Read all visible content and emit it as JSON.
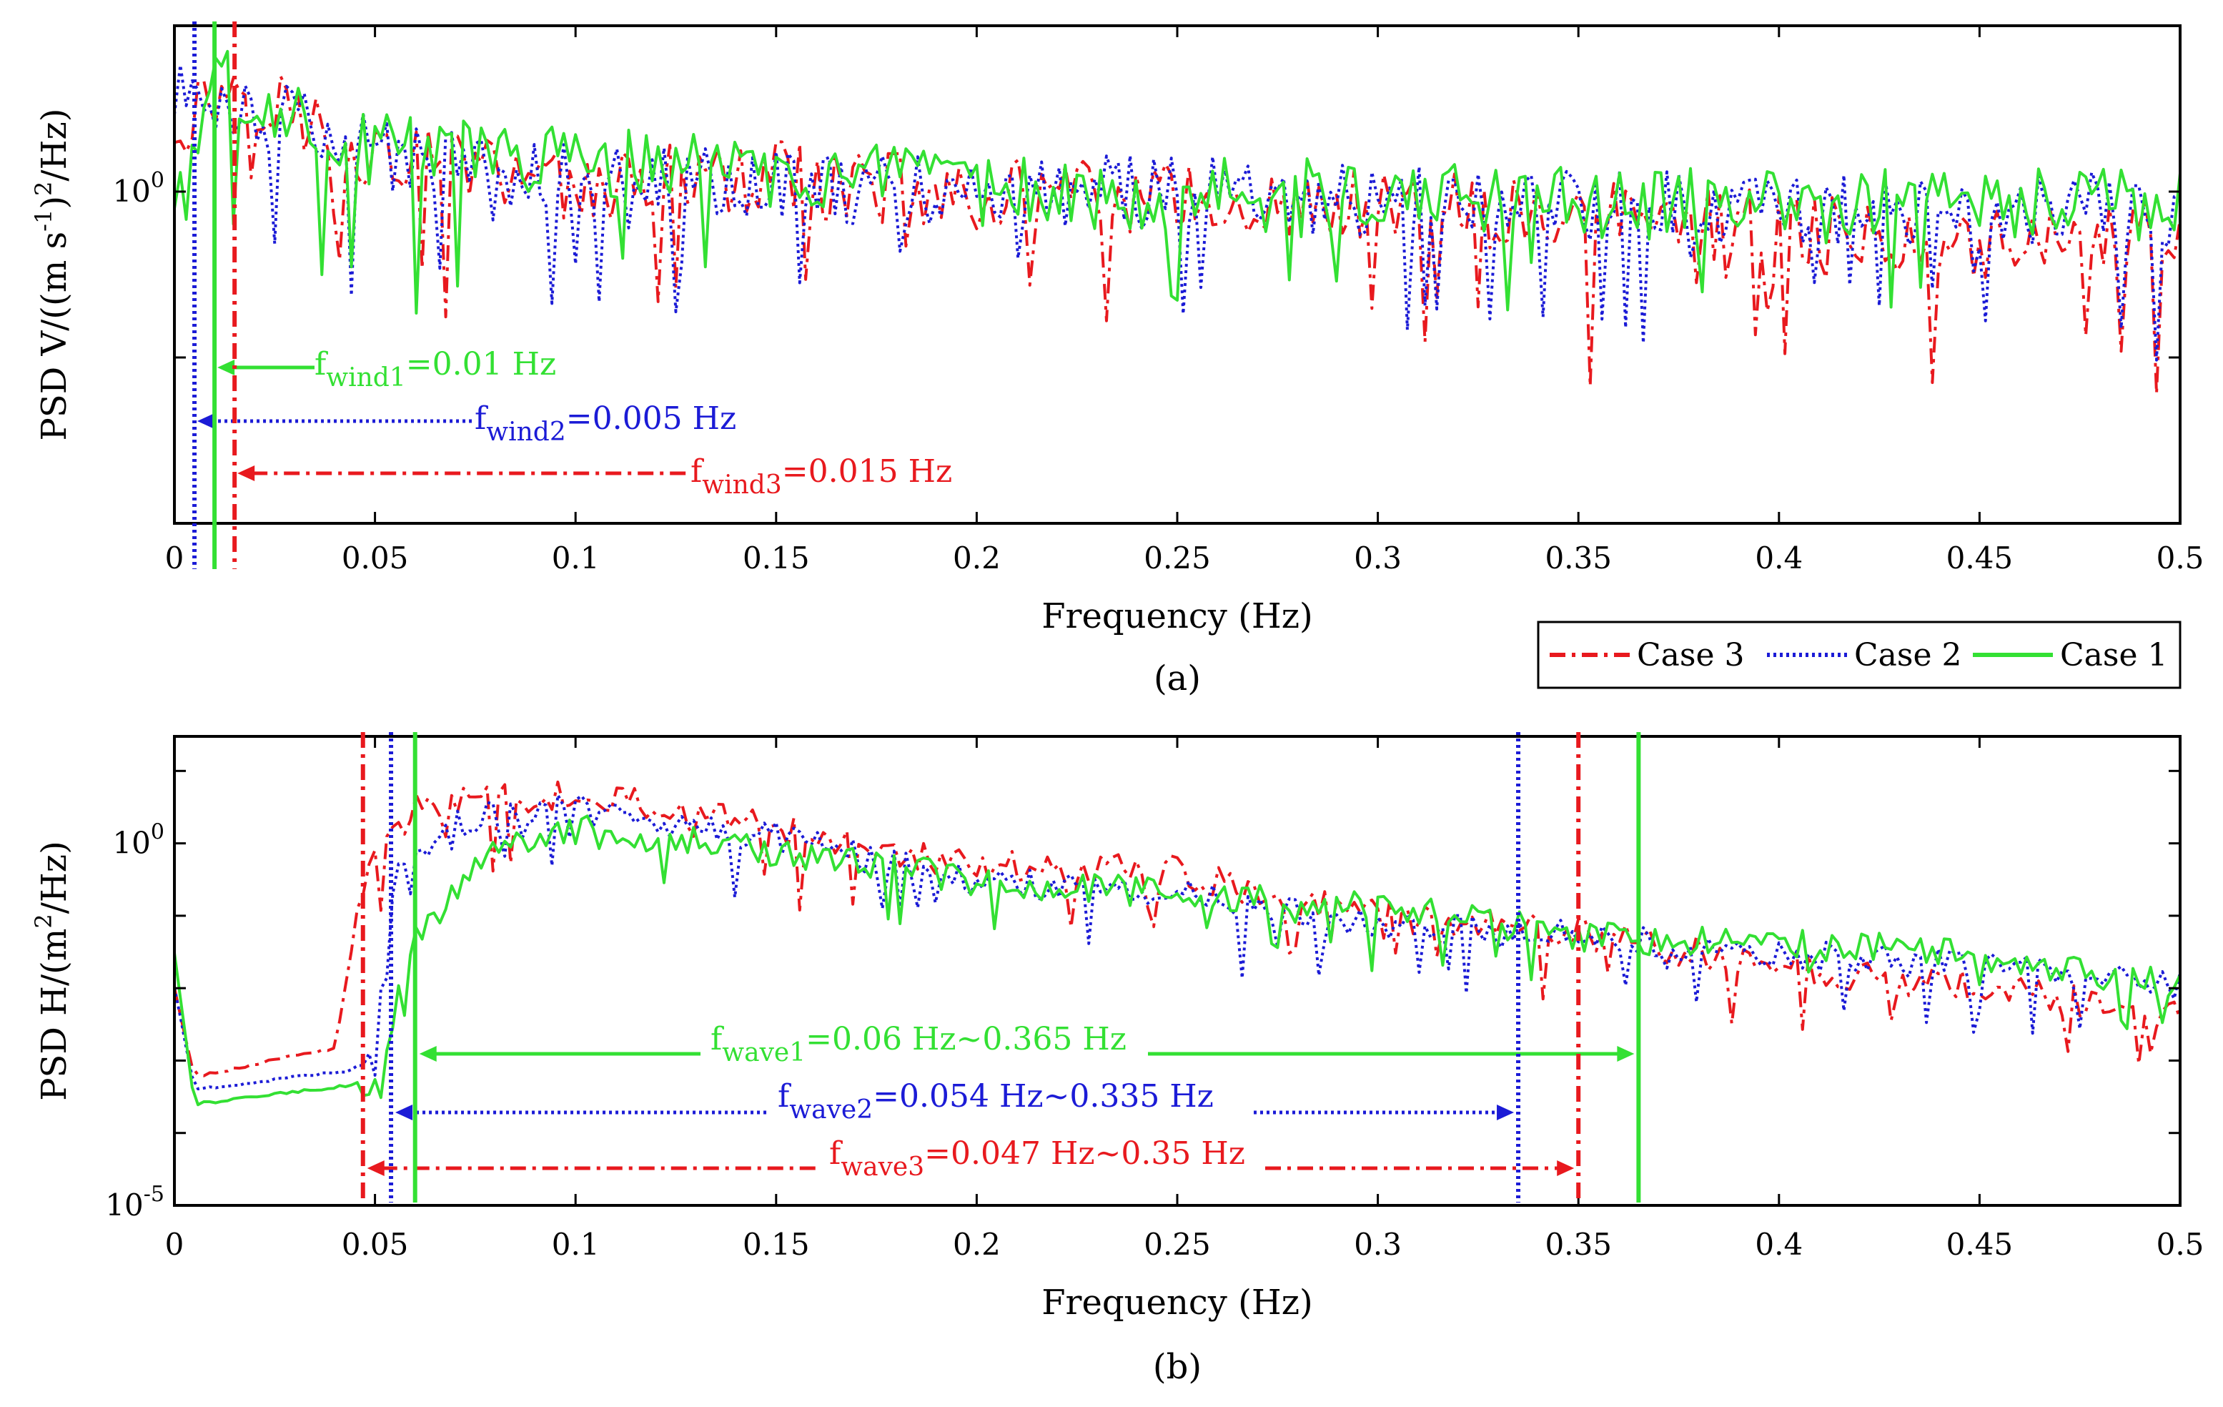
{
  "chart_data": [
    {
      "panel": "(a)",
      "type": "line",
      "xlabel": "Frequency (Hz)",
      "ylabel": "PSD V/((m s-1)2/Hz)",
      "ylabel_parts": [
        "PSD V/((m s",
        "-1",
        ")",
        "2",
        "/Hz)"
      ],
      "xlim": [
        0,
        0.5
      ],
      "xticks": [
        "0",
        "0.05",
        "0.1",
        "0.15",
        "0.2",
        "0.25",
        "0.3",
        "0.35",
        "0.4",
        "0.45",
        "0.5"
      ],
      "yscale": "log",
      "ylim": [
        0.01,
        10
      ],
      "ytick_label": {
        "base": "10",
        "exp": "0",
        "value": 1
      },
      "series": [
        {
          "name": "Case 3",
          "color": "#e8191e",
          "style": "dashdot",
          "x": [
            0,
            0.015,
            0.05,
            0.1,
            0.15,
            0.2,
            0.25,
            0.3,
            0.35,
            0.4,
            0.45,
            0.5
          ],
          "y": [
            2.5,
            4.6,
            1.6,
            1.1,
            1.2,
            0.95,
            0.9,
            0.8,
            0.7,
            0.6,
            0.5,
            0.55
          ]
        },
        {
          "name": "Case 2",
          "color": "#1b1bd6",
          "style": "dotted",
          "x": [
            0,
            0.005,
            0.05,
            0.1,
            0.15,
            0.2,
            0.25,
            0.3,
            0.35,
            0.4,
            0.45,
            0.5
          ],
          "y": [
            3.5,
            4.2,
            1.7,
            1.2,
            1.1,
            1.0,
            1.0,
            0.9,
            0.85,
            0.8,
            0.75,
            0.8
          ]
        },
        {
          "name": "Case 1",
          "color": "#33e033",
          "style": "solid",
          "x": [
            0,
            0.01,
            0.05,
            0.1,
            0.15,
            0.2,
            0.25,
            0.3,
            0.35,
            0.4,
            0.45,
            0.5
          ],
          "y": [
            0.9,
            4.5,
            1.8,
            1.5,
            1.3,
            1.0,
            0.95,
            0.95,
            0.85,
            0.8,
            0.85,
            0.8
          ]
        }
      ],
      "annotations": [
        {
          "base": "f",
          "sub": "wind1",
          "rest": "=0.01 Hz",
          "color": "#33e033",
          "x_marker": 0.01
        },
        {
          "base": "f",
          "sub": "wind2",
          "rest": "=0.005 Hz",
          "color": "#1b1bd6",
          "x_marker": 0.005
        },
        {
          "base": "f",
          "sub": "wind3",
          "rest": "=0.015 Hz",
          "color": "#e8191e",
          "x_marker": 0.015
        }
      ],
      "subtitle": "(a)"
    },
    {
      "panel": "(b)",
      "type": "line",
      "xlabel": "Frequency (Hz)",
      "ylabel": "PSD H/(m2/Hz)",
      "ylabel_parts": [
        "PSD H/(m",
        "2",
        "/Hz)"
      ],
      "xlim": [
        0,
        0.5
      ],
      "xticks": [
        "0",
        "0.05",
        "0.1",
        "0.15",
        "0.2",
        "0.25",
        "0.3",
        "0.35",
        "0.4",
        "0.45",
        "0.5"
      ],
      "yscale": "log",
      "ylim": [
        1e-05,
        30
      ],
      "ytick_labels": [
        {
          "base": "10",
          "exp": "0",
          "value": 1
        },
        {
          "base": "10",
          "exp": "-5",
          "value": 1e-05
        }
      ],
      "series": [
        {
          "name": "Case 3",
          "color": "#e8191e",
          "style": "dashdot",
          "x": [
            0,
            0.005,
            0.04,
            0.047,
            0.06,
            0.1,
            0.15,
            0.2,
            0.25,
            0.3,
            0.35,
            0.4,
            0.45,
            0.5
          ],
          "y": [
            0.01,
            0.0006,
            0.0015,
            0.3,
            3,
            5,
            1.5,
            0.5,
            0.4,
            0.1,
            0.06,
            0.02,
            0.01,
            0.004
          ]
        },
        {
          "name": "Case 2",
          "color": "#1b1bd6",
          "style": "dotted",
          "x": [
            0,
            0.005,
            0.05,
            0.054,
            0.07,
            0.1,
            0.15,
            0.2,
            0.25,
            0.3,
            0.35,
            0.4,
            0.45,
            0.5
          ],
          "y": [
            0.01,
            0.0004,
            0.0008,
            0.3,
            2,
            3,
            1.2,
            0.3,
            0.2,
            0.08,
            0.05,
            0.03,
            0.02,
            0.01
          ]
        },
        {
          "name": "Case 1",
          "color": "#33e033",
          "style": "solid",
          "x": [
            0,
            0.005,
            0.05,
            0.06,
            0.08,
            0.1,
            0.15,
            0.2,
            0.25,
            0.3,
            0.35,
            0.4,
            0.45,
            0.5
          ],
          "y": [
            0.03,
            0.00025,
            0.0005,
            0.05,
            1,
            1.5,
            0.8,
            0.3,
            0.2,
            0.15,
            0.05,
            0.04,
            0.03,
            0.01
          ]
        }
      ],
      "annotations": [
        {
          "base": "f",
          "sub": "wave1",
          "rest": "=0.06 Hz~0.365 Hz",
          "color": "#33e033",
          "x_range": [
            0.06,
            0.365
          ]
        },
        {
          "base": "f",
          "sub": "wave2",
          "rest": "=0.054 Hz~0.335 Hz",
          "color": "#1b1bd6",
          "x_range": [
            0.054,
            0.335
          ]
        },
        {
          "base": "f",
          "sub": "wave3",
          "rest": "=0.047 Hz~0.35 Hz",
          "color": "#e8191e",
          "x_range": [
            0.047,
            0.35
          ]
        }
      ],
      "subtitle": "(b)"
    }
  ],
  "legend": {
    "placement": "between panels, right",
    "entries": [
      {
        "label": "Case 3",
        "color": "#e8191e",
        "style": "dashdot"
      },
      {
        "label": "Case 2",
        "color": "#1b1bd6",
        "style": "dotted"
      },
      {
        "label": "Case 1",
        "color": "#33e033",
        "style": "solid"
      }
    ]
  }
}
